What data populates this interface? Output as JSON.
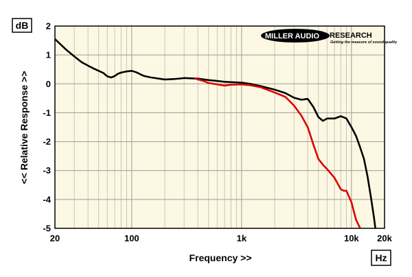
{
  "chart_data": {
    "type": "line",
    "title": "",
    "xlabel": "Frequency >>",
    "ylabel": "<< Relative Response >>",
    "y_unit": "dB",
    "x_unit": "Hz",
    "x_scale": "log",
    "xlim": [
      20,
      20000
    ],
    "ylim": [
      -5,
      2
    ],
    "grid": true,
    "x_ticks": [
      {
        "value": 20,
        "label": "20"
      },
      {
        "value": 100,
        "label": "100"
      },
      {
        "value": 1000,
        "label": "1k"
      },
      {
        "value": 10000,
        "label": "10k"
      },
      {
        "value": 20000,
        "label": "20k"
      }
    ],
    "y_ticks": [
      {
        "value": 2,
        "label": "2"
      },
      {
        "value": 1,
        "label": "1"
      },
      {
        "value": 0,
        "label": "0"
      },
      {
        "value": -1,
        "label": "-1"
      },
      {
        "value": -2,
        "label": "-2"
      },
      {
        "value": -3,
        "label": "-3"
      },
      {
        "value": -4,
        "label": "-4"
      },
      {
        "value": -5,
        "label": "-5"
      }
    ],
    "logo": {
      "main": "MILLER AUDIO",
      "right": "RESEARCH",
      "tagline": "Getting the measure of sound quality"
    },
    "series": [
      {
        "color": "#000000",
        "points": [
          [
            20,
            1.55
          ],
          [
            25,
            1.2
          ],
          [
            30,
            0.95
          ],
          [
            35,
            0.75
          ],
          [
            40,
            0.63
          ],
          [
            45,
            0.53
          ],
          [
            50,
            0.45
          ],
          [
            55,
            0.38
          ],
          [
            60,
            0.26
          ],
          [
            65,
            0.22
          ],
          [
            70,
            0.27
          ],
          [
            75,
            0.35
          ],
          [
            80,
            0.39
          ],
          [
            90,
            0.43
          ],
          [
            100,
            0.45
          ],
          [
            110,
            0.4
          ],
          [
            120,
            0.33
          ],
          [
            130,
            0.27
          ],
          [
            150,
            0.22
          ],
          [
            200,
            0.15
          ],
          [
            250,
            0.17
          ],
          [
            300,
            0.2
          ],
          [
            400,
            0.18
          ],
          [
            500,
            0.13
          ],
          [
            600,
            0.1
          ],
          [
            700,
            0.07
          ],
          [
            800,
            0.06
          ],
          [
            1000,
            0.04
          ],
          [
            1200,
            0.0
          ],
          [
            1500,
            -0.08
          ],
          [
            2000,
            -0.2
          ],
          [
            2500,
            -0.32
          ],
          [
            3000,
            -0.48
          ],
          [
            3500,
            -0.55
          ],
          [
            4000,
            -0.52
          ],
          [
            4500,
            -0.8
          ],
          [
            5000,
            -1.15
          ],
          [
            5500,
            -1.28
          ],
          [
            6000,
            -1.2
          ],
          [
            7000,
            -1.2
          ],
          [
            8000,
            -1.12
          ],
          [
            9000,
            -1.2
          ],
          [
            10000,
            -1.5
          ],
          [
            11000,
            -1.8
          ],
          [
            12000,
            -2.2
          ],
          [
            13000,
            -2.6
          ],
          [
            14000,
            -3.2
          ],
          [
            15000,
            -3.9
          ],
          [
            16000,
            -4.6
          ],
          [
            16500,
            -5.0
          ]
        ]
      },
      {
        "color": "#dd0000",
        "points": [
          [
            380,
            0.18
          ],
          [
            450,
            0.1
          ],
          [
            500,
            0.03
          ],
          [
            600,
            -0.02
          ],
          [
            700,
            -0.06
          ],
          [
            800,
            -0.03
          ],
          [
            1000,
            -0.02
          ],
          [
            1200,
            -0.05
          ],
          [
            1500,
            -0.12
          ],
          [
            2000,
            -0.3
          ],
          [
            2500,
            -0.45
          ],
          [
            3000,
            -0.75
          ],
          [
            3500,
            -1.1
          ],
          [
            4000,
            -1.5
          ],
          [
            4500,
            -2.1
          ],
          [
            5000,
            -2.6
          ],
          [
            5500,
            -2.8
          ],
          [
            6000,
            -2.95
          ],
          [
            7000,
            -3.25
          ],
          [
            8000,
            -3.65
          ],
          [
            8500,
            -3.7
          ],
          [
            9000,
            -3.7
          ],
          [
            10000,
            -4.1
          ],
          [
            11000,
            -4.7
          ],
          [
            12000,
            -5.0
          ]
        ]
      }
    ]
  }
}
